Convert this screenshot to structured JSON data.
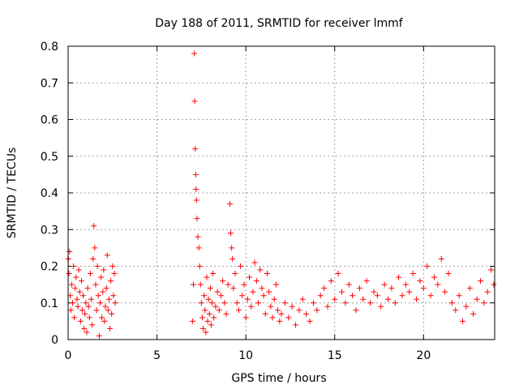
{
  "chart_data": {
    "type": "scatter",
    "title": "Day 188 of 2011, SRMTID for receiver lmmf",
    "xlabel": "GPS time / hours",
    "ylabel": "SRMTID / TECUs",
    "xlim": [
      0,
      24
    ],
    "ylim": [
      0,
      0.8
    ],
    "xticks": [
      0,
      5,
      10,
      15,
      20
    ],
    "xtick_labels": [
      "0",
      "5",
      "10",
      "15",
      "20"
    ],
    "yticks": [
      0,
      0.1,
      0.2,
      0.3,
      0.4,
      0.5,
      0.6,
      0.7,
      0.8
    ],
    "ytick_labels": [
      "0",
      "0.1",
      "0.2",
      "0.3",
      "0.4",
      "0.5",
      "0.6",
      "0.7",
      "0.8"
    ],
    "grid": true,
    "marker": "+",
    "marker_color": "#ff0000",
    "series": [
      {
        "name": "SRMTID",
        "x": [
          0.02,
          0.05,
          0.08,
          0.12,
          0.15,
          0.2,
          0.25,
          0.3,
          0.35,
          0.4,
          0.45,
          0.5,
          0.55,
          0.6,
          0.65,
          0.7,
          0.75,
          0.8,
          0.85,
          0.9,
          0.95,
          1.0,
          1.05,
          1.1,
          1.15,
          1.2,
          1.25,
          1.3,
          1.35,
          1.4,
          1.45,
          1.5,
          1.55,
          1.6,
          1.65,
          1.7,
          1.75,
          1.8,
          1.85,
          1.9,
          1.95,
          2.0,
          2.05,
          2.1,
          2.15,
          2.2,
          2.25,
          2.3,
          2.35,
          2.4,
          2.45,
          2.5,
          2.55,
          2.6,
          2.65,
          7.0,
          7.05,
          7.1,
          7.12,
          7.15,
          7.18,
          7.2,
          7.22,
          7.25,
          7.3,
          7.35,
          7.4,
          7.45,
          7.5,
          7.55,
          7.6,
          7.65,
          7.7,
          7.75,
          7.8,
          7.85,
          7.9,
          7.95,
          8.0,
          8.05,
          8.1,
          8.15,
          8.2,
          8.3,
          8.4,
          8.5,
          8.6,
          8.7,
          8.8,
          8.9,
          9.0,
          9.1,
          9.15,
          9.2,
          9.25,
          9.3,
          9.4,
          9.5,
          9.6,
          9.7,
          9.8,
          9.9,
          10.0,
          10.1,
          10.2,
          10.3,
          10.4,
          10.5,
          10.6,
          10.7,
          10.8,
          10.9,
          11.0,
          11.1,
          11.2,
          11.3,
          11.4,
          11.5,
          11.6,
          11.7,
          11.8,
          11.9,
          12.0,
          12.2,
          12.4,
          12.6,
          12.8,
          13.0,
          13.2,
          13.4,
          13.6,
          13.8,
          14.0,
          14.2,
          14.4,
          14.6,
          14.8,
          15.0,
          15.2,
          15.4,
          15.6,
          15.8,
          16.0,
          16.2,
          16.4,
          16.6,
          16.8,
          17.0,
          17.2,
          17.4,
          17.6,
          17.8,
          18.0,
          18.2,
          18.4,
          18.6,
          18.8,
          19.0,
          19.2,
          19.4,
          19.6,
          19.8,
          20.0,
          20.2,
          20.4,
          20.6,
          20.8,
          21.0,
          21.2,
          21.4,
          21.6,
          21.8,
          22.0,
          22.2,
          22.4,
          22.6,
          22.8,
          23.0,
          23.2,
          23.4,
          23.6,
          23.8,
          23.95
        ],
        "y": [
          0.22,
          0.18,
          0.24,
          0.12,
          0.08,
          0.15,
          0.1,
          0.2,
          0.06,
          0.14,
          0.17,
          0.11,
          0.09,
          0.19,
          0.13,
          0.05,
          0.16,
          0.08,
          0.12,
          0.03,
          0.07,
          0.1,
          0.02,
          0.14,
          0.09,
          0.06,
          0.18,
          0.11,
          0.04,
          0.22,
          0.31,
          0.25,
          0.15,
          0.08,
          0.2,
          0.12,
          0.01,
          0.1,
          0.17,
          0.06,
          0.13,
          0.19,
          0.05,
          0.09,
          0.14,
          0.23,
          0.08,
          0.11,
          0.03,
          0.16,
          0.07,
          0.2,
          0.12,
          0.18,
          0.1,
          0.05,
          0.15,
          0.78,
          0.65,
          0.52,
          0.45,
          0.41,
          0.38,
          0.33,
          0.28,
          0.25,
          0.2,
          0.15,
          0.1,
          0.06,
          0.03,
          0.12,
          0.08,
          0.02,
          0.17,
          0.05,
          0.11,
          0.07,
          0.14,
          0.04,
          0.1,
          0.18,
          0.06,
          0.09,
          0.13,
          0.08,
          0.12,
          0.16,
          0.1,
          0.07,
          0.15,
          0.37,
          0.29,
          0.25,
          0.22,
          0.14,
          0.18,
          0.1,
          0.08,
          0.2,
          0.12,
          0.15,
          0.06,
          0.11,
          0.17,
          0.09,
          0.13,
          0.21,
          0.16,
          0.1,
          0.19,
          0.14,
          0.12,
          0.07,
          0.18,
          0.13,
          0.09,
          0.06,
          0.11,
          0.15,
          0.08,
          0.05,
          0.07,
          0.1,
          0.06,
          0.09,
          0.04,
          0.08,
          0.11,
          0.07,
          0.05,
          0.1,
          0.08,
          0.12,
          0.14,
          0.09,
          0.16,
          0.11,
          0.18,
          0.13,
          0.1,
          0.15,
          0.12,
          0.08,
          0.14,
          0.11,
          0.16,
          0.1,
          0.13,
          0.12,
          0.09,
          0.15,
          0.11,
          0.14,
          0.1,
          0.17,
          0.12,
          0.15,
          0.13,
          0.18,
          0.11,
          0.16,
          0.14,
          0.2,
          0.12,
          0.17,
          0.15,
          0.22,
          0.13,
          0.18,
          0.1,
          0.08,
          0.12,
          0.05,
          0.09,
          0.14,
          0.07,
          0.11,
          0.16,
          0.1,
          0.13,
          0.19,
          0.15
        ]
      }
    ]
  }
}
